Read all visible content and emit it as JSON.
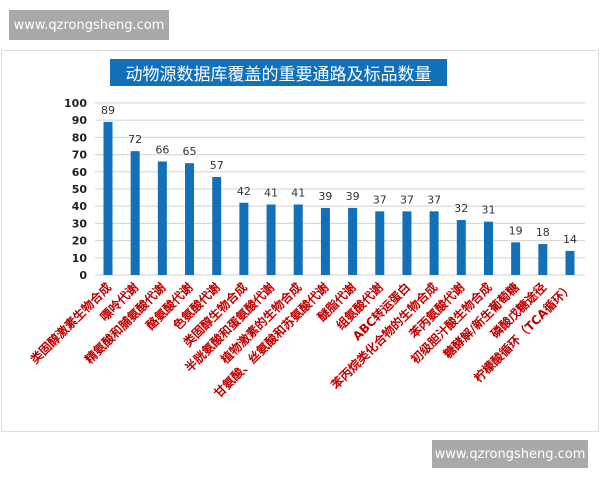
{
  "watermark_top": "www.qzrongsheng.com",
  "watermark_bottom": "www.qzrongsheng.com",
  "chart_data": {
    "type": "bar",
    "title": "动物源数据库覆盖的重要通路及标品数量",
    "xlabel": "",
    "ylabel": "",
    "ylim": [
      0,
      100
    ],
    "yticks": [
      0,
      10,
      20,
      30,
      40,
      50,
      60,
      70,
      80,
      90,
      100
    ],
    "grid": true,
    "colors": {
      "bar": "#1170b8",
      "label": "#c00000",
      "title_bg": "#1170b8"
    },
    "categories": [
      "类固醇激素生物合成",
      "嘌呤代谢",
      "精氨酸和脯氨酸代谢",
      "酪氨酸代谢",
      "色氨酸代谢",
      "类固醇生物合成",
      "半胱氨酸和蛋氨酸代谢",
      "植物激素的生物合成",
      "甘氨酸、丝氨酸和苏氨酸代谢",
      "醚脂代谢",
      "组氨酸代谢",
      "ABC转运蛋白",
      "苯丙烷类化合物的生物合成",
      "苯丙氨酸代谢",
      "初级胆汁酸生物合成",
      "糖酵解/新生葡萄糖",
      "磷酸戊糖途径",
      "柠檬酸循环（TCA循环）"
    ],
    "values": [
      89,
      72,
      66,
      65,
      57,
      42,
      41,
      41,
      39,
      39,
      37,
      37,
      37,
      32,
      31,
      19,
      18,
      14
    ]
  }
}
